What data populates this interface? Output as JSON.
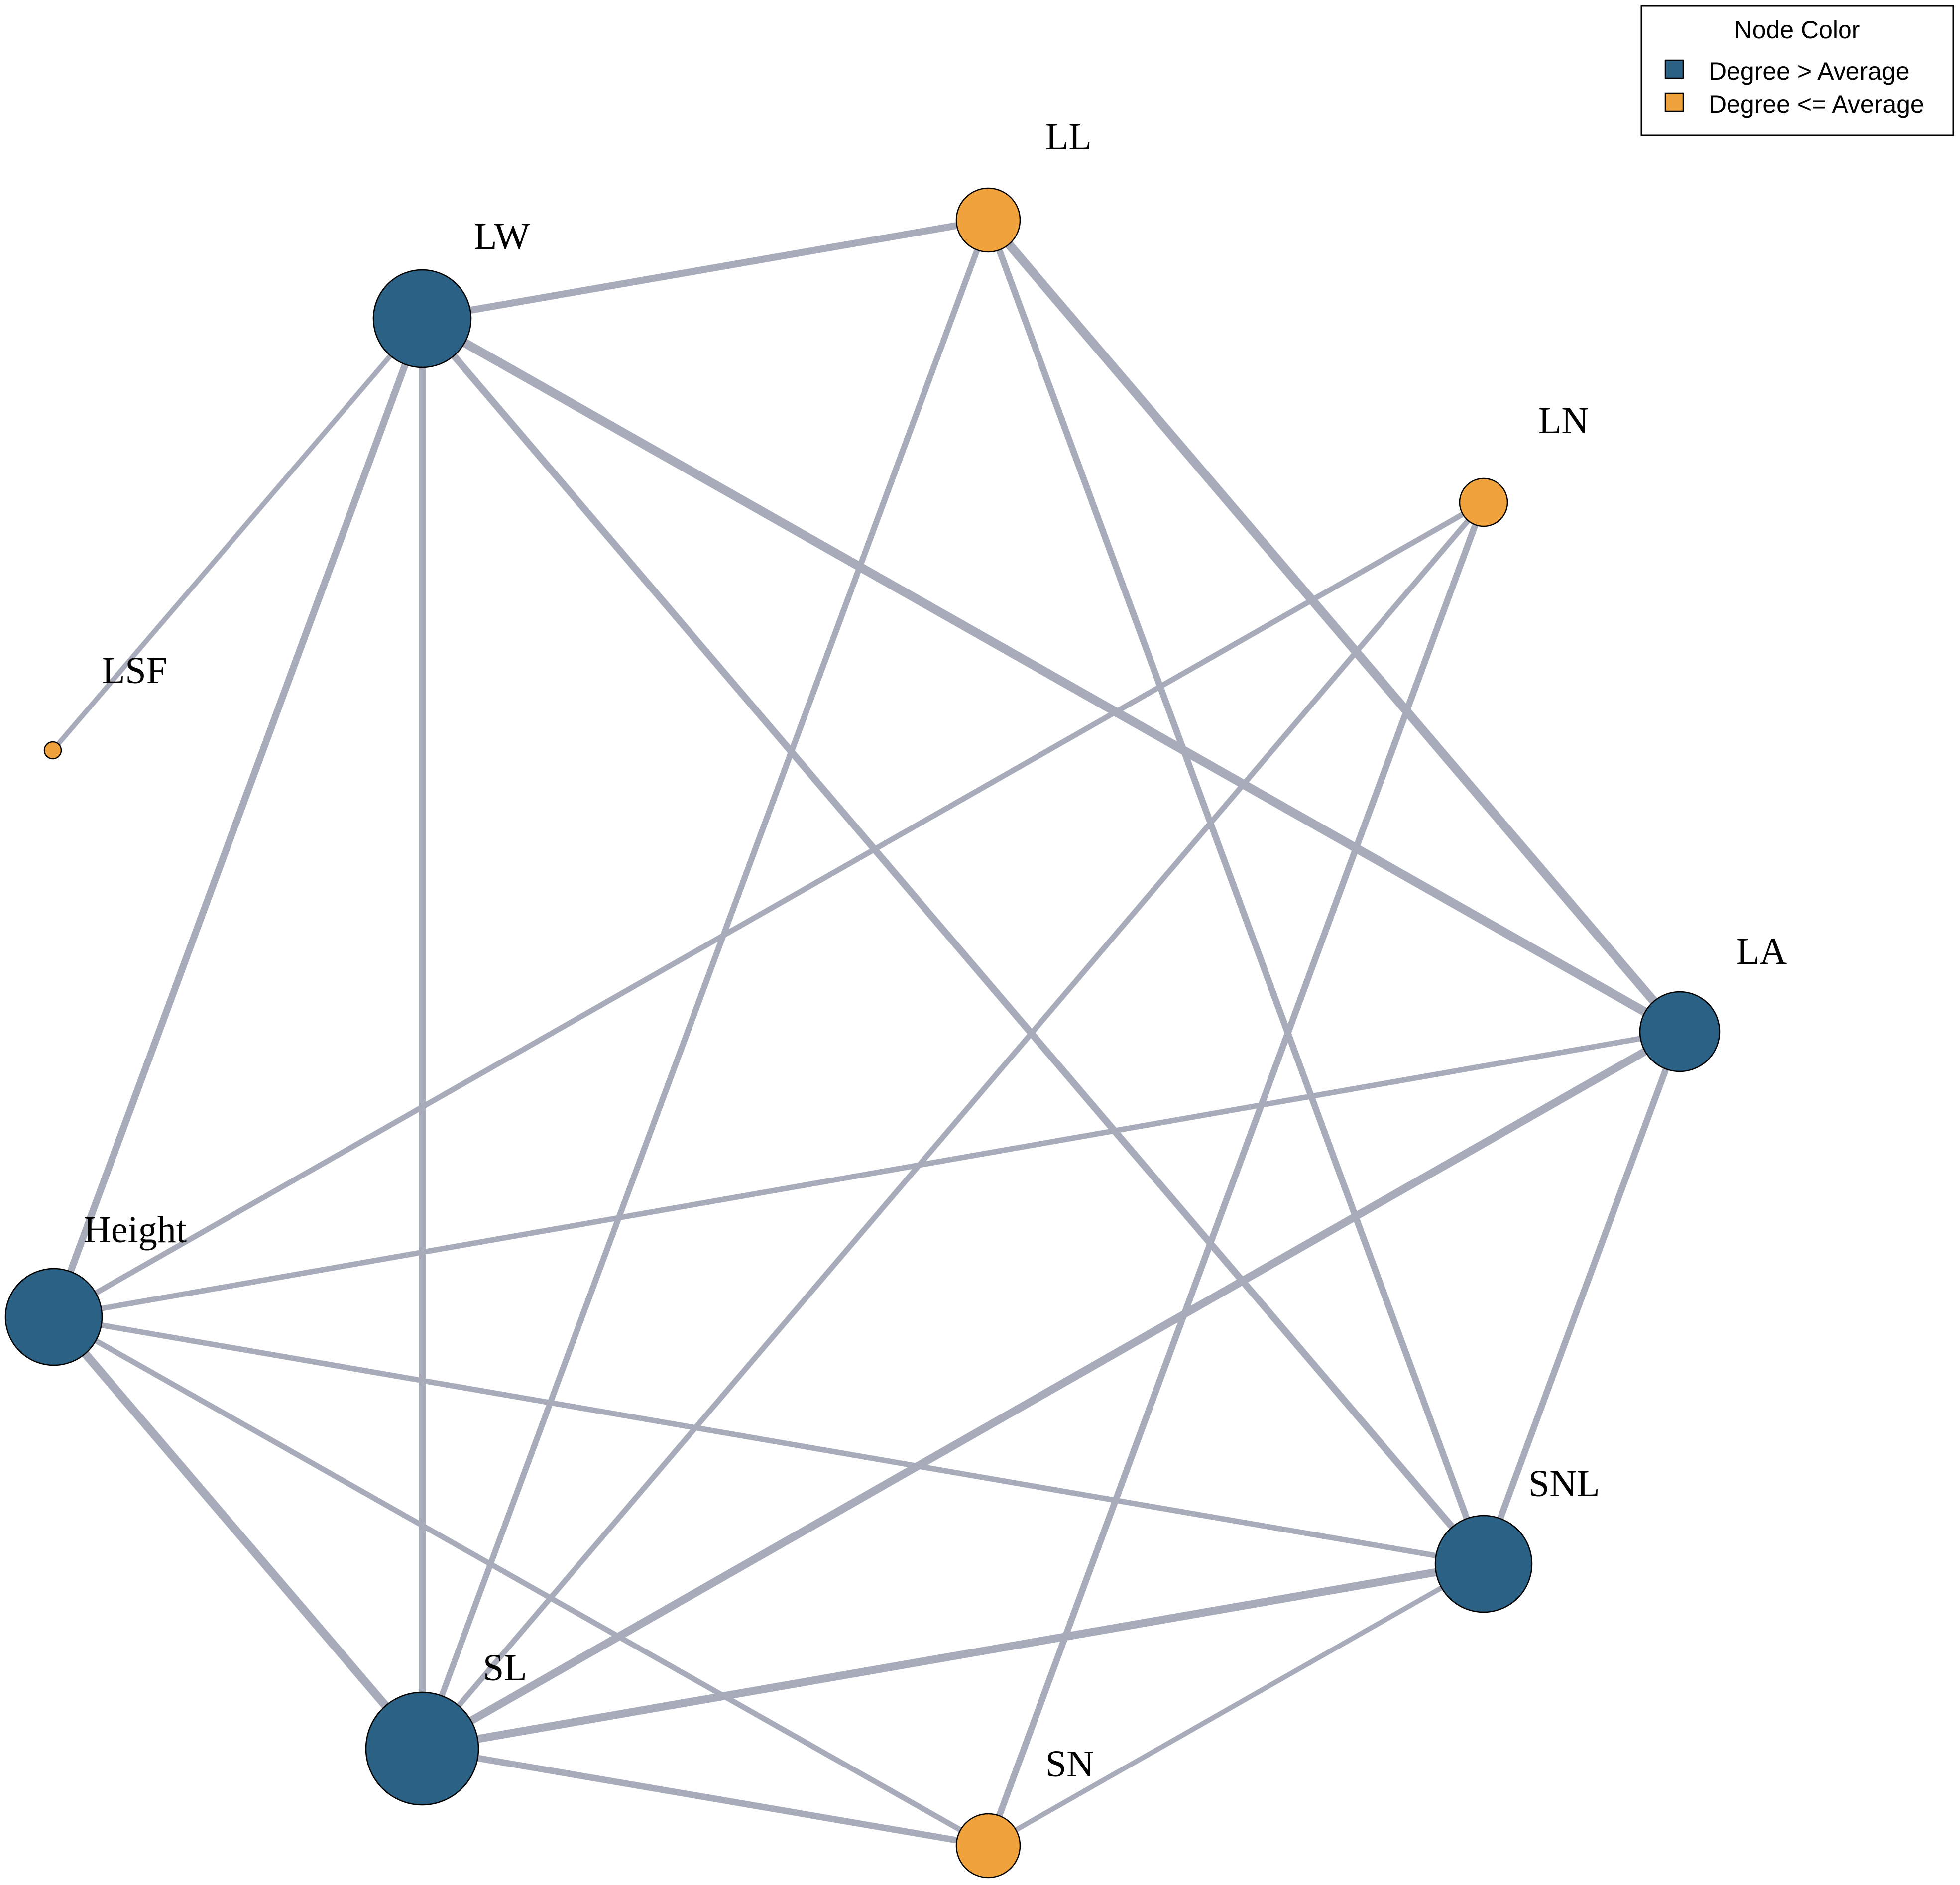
{
  "legend": {
    "title": "Node Color",
    "items": [
      {
        "label": "Degree > Average",
        "color": "#2b6185"
      },
      {
        "label": "Degree <= Average",
        "color": "#f0a33c"
      }
    ]
  },
  "colors": {
    "high_degree": "#2b6185",
    "low_degree": "#f0a33c",
    "edge": "#a8acba"
  },
  "nodes": [
    {
      "id": "LL",
      "label": "LL",
      "group": "low"
    },
    {
      "id": "LW",
      "label": "LW",
      "group": "high"
    },
    {
      "id": "LN",
      "label": "LN",
      "group": "low"
    },
    {
      "id": "LSF",
      "label": "LSF",
      "group": "low"
    },
    {
      "id": "LA",
      "label": "LA",
      "group": "high"
    },
    {
      "id": "Height",
      "label": "Height",
      "group": "high"
    },
    {
      "id": "SNL",
      "label": "SNL",
      "group": "high"
    },
    {
      "id": "SL",
      "label": "SL",
      "group": "high"
    },
    {
      "id": "SN",
      "label": "SN",
      "group": "low"
    }
  ],
  "edges": [
    {
      "source": "LW",
      "target": "LL"
    },
    {
      "source": "LW",
      "target": "LSF"
    },
    {
      "source": "LW",
      "target": "Height"
    },
    {
      "source": "LW",
      "target": "SL"
    },
    {
      "source": "LW",
      "target": "SNL"
    },
    {
      "source": "LW",
      "target": "LA"
    },
    {
      "source": "LL",
      "target": "SL"
    },
    {
      "source": "LL",
      "target": "SNL"
    },
    {
      "source": "LL",
      "target": "LA"
    },
    {
      "source": "LN",
      "target": "Height"
    },
    {
      "source": "LN",
      "target": "SL"
    },
    {
      "source": "LN",
      "target": "SN"
    },
    {
      "source": "LA",
      "target": "Height"
    },
    {
      "source": "LA",
      "target": "SL"
    },
    {
      "source": "LA",
      "target": "SNL"
    },
    {
      "source": "Height",
      "target": "SL"
    },
    {
      "source": "Height",
      "target": "SN"
    },
    {
      "source": "Height",
      "target": "SNL"
    },
    {
      "source": "SL",
      "target": "SN"
    },
    {
      "source": "SL",
      "target": "SNL"
    },
    {
      "source": "SNL",
      "target": "SN"
    }
  ]
}
